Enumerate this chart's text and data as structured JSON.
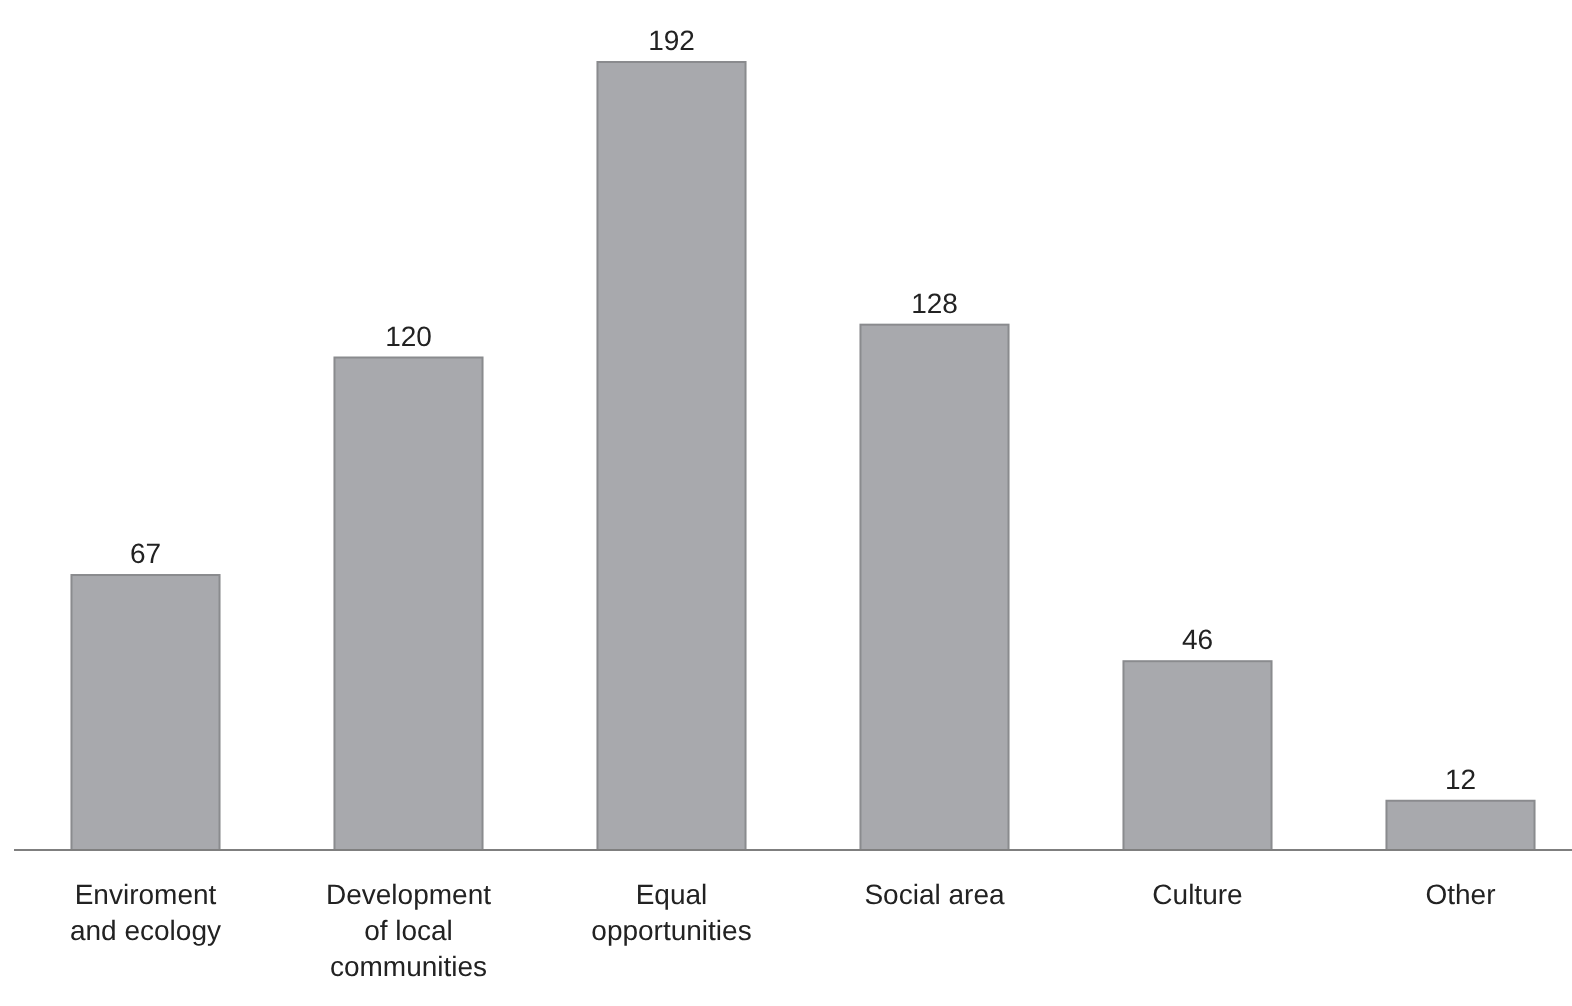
{
  "chart_data": {
    "type": "bar",
    "categories": [
      "Enviroment and ecology",
      "Development of local communities",
      "Equal opportunities",
      "Social area",
      "Culture",
      "Other"
    ],
    "values": [
      67,
      120,
      192,
      128,
      46,
      12
    ],
    "color": "#a8a9ad",
    "data_labels": true
  }
}
